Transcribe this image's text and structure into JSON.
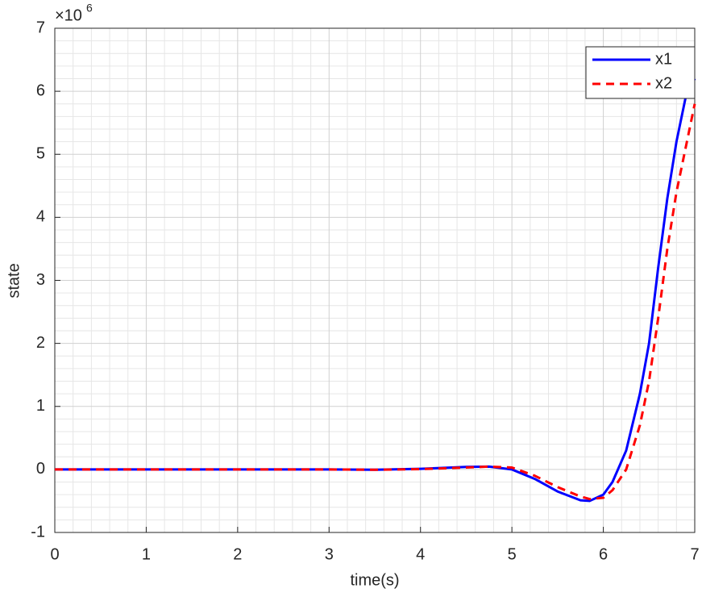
{
  "chart_data": {
    "type": "line",
    "xlabel": "time(s)",
    "ylabel": "state",
    "y_multiplier_base": "×10",
    "y_multiplier_exponent": "6",
    "xlim": [
      0,
      7
    ],
    "ylim": [
      -1,
      7
    ],
    "xticks": [
      0,
      1,
      2,
      3,
      4,
      5,
      6,
      7
    ],
    "yticks": [
      -1,
      0,
      1,
      2,
      3,
      4,
      5,
      6,
      7
    ],
    "grid": true,
    "minor_grid": true,
    "legend_position": "upper-right",
    "x": [
      0,
      1,
      2,
      3,
      3.5,
      4,
      4.5,
      4.75,
      5,
      5.25,
      5.5,
      5.75,
      5.85,
      6,
      6.1,
      6.25,
      6.4,
      6.5,
      6.6,
      6.7,
      6.8,
      6.9,
      7
    ],
    "series": [
      {
        "name": "x1",
        "color": "#0000ff",
        "dash": "solid",
        "values": [
          0,
          0,
          0,
          0,
          -0.005,
          0.01,
          0.04,
          0.045,
          0,
          -0.15,
          -0.35,
          -0.49,
          -0.5,
          -0.4,
          -0.2,
          0.3,
          1.2,
          2.0,
          3.2,
          4.3,
          5.2,
          5.9,
          6.2
        ]
      },
      {
        "name": "x2",
        "color": "#ff0000",
        "dash": "dashed",
        "values": [
          0,
          0,
          0,
          0,
          -0.005,
          0.005,
          0.03,
          0.045,
          0.03,
          -0.1,
          -0.28,
          -0.43,
          -0.47,
          -0.45,
          -0.33,
          0.0,
          0.7,
          1.4,
          2.4,
          3.5,
          4.4,
          5.1,
          5.8
        ]
      }
    ]
  }
}
